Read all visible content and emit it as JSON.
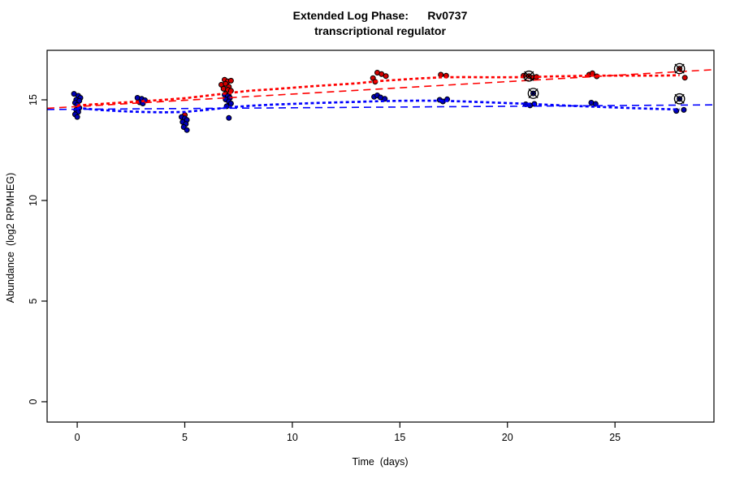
{
  "title": {
    "line1": "Extended Log Phase:      Rv0737",
    "line2": "transcriptional regulator"
  },
  "chart_data": {
    "type": "scatter",
    "title": "Extended Log Phase: Rv0737 — transcriptional regulator",
    "xlabel": "Time  (days)",
    "ylabel": "Abundance  (log2 RPMHEG)",
    "xlim": [
      -1.4,
      29.6
    ],
    "ylim": [
      -1.01,
      17.46
    ],
    "x_ticks": [
      0,
      5,
      10,
      15,
      20,
      25
    ],
    "y_ticks": [
      0,
      5,
      10,
      15
    ],
    "grid": false,
    "legend": "none",
    "colors": {
      "red_points": "#d40000",
      "blue_points": "#0000b8",
      "red_lines": "#ff0000",
      "blue_lines": "#0000ff",
      "marker": "#000000",
      "axis": "#000000"
    },
    "series": [
      {
        "name": "red-points",
        "type": "points",
        "color": "#d40000",
        "points": [
          [
            2.85,
            15.05
          ],
          [
            3.0,
            14.95
          ],
          [
            5.0,
            14.25
          ],
          [
            6.7,
            15.75
          ],
          [
            6.85,
            16.0
          ],
          [
            7.0,
            15.92
          ],
          [
            7.15,
            15.95
          ],
          [
            6.9,
            15.8
          ],
          [
            7.05,
            15.65
          ],
          [
            6.8,
            15.55
          ],
          [
            7.0,
            15.5
          ],
          [
            7.15,
            15.45
          ],
          [
            6.9,
            15.3
          ],
          [
            7.05,
            15.2
          ],
          [
            13.75,
            16.08
          ],
          [
            13.95,
            16.35
          ],
          [
            14.15,
            16.28
          ],
          [
            14.35,
            16.18
          ],
          [
            13.85,
            15.9
          ],
          [
            16.9,
            16.25
          ],
          [
            17.15,
            16.2
          ],
          [
            20.75,
            16.2
          ],
          [
            21.15,
            16.1
          ],
          [
            21.35,
            16.14
          ],
          [
            23.8,
            16.25
          ],
          [
            23.95,
            16.32
          ],
          [
            24.15,
            16.17
          ],
          [
            28.25,
            16.1
          ]
        ]
      },
      {
        "name": "blue-points",
        "type": "points",
        "color": "#0000b8",
        "points": [
          [
            -0.15,
            15.3
          ],
          [
            0.05,
            15.2
          ],
          [
            0.15,
            15.1
          ],
          [
            -0.05,
            15.0
          ],
          [
            0.1,
            14.95
          ],
          [
            -0.1,
            14.85
          ],
          [
            0.0,
            14.75
          ],
          [
            0.1,
            14.6
          ],
          [
            -0.05,
            14.5
          ],
          [
            0.05,
            14.4
          ],
          [
            -0.1,
            14.28
          ],
          [
            0.0,
            14.15
          ],
          [
            2.8,
            15.1
          ],
          [
            3.0,
            15.05
          ],
          [
            3.15,
            14.98
          ],
          [
            2.9,
            14.88
          ],
          [
            3.05,
            14.82
          ],
          [
            4.85,
            14.15
          ],
          [
            5.0,
            14.08
          ],
          [
            5.1,
            14.0
          ],
          [
            4.9,
            13.9
          ],
          [
            5.05,
            13.8
          ],
          [
            4.95,
            13.65
          ],
          [
            5.1,
            13.5
          ],
          [
            6.85,
            15.25
          ],
          [
            7.0,
            15.18
          ],
          [
            7.1,
            15.1
          ],
          [
            6.9,
            15.02
          ],
          [
            7.05,
            14.92
          ],
          [
            7.15,
            14.82
          ],
          [
            6.95,
            14.68
          ],
          [
            7.05,
            14.1
          ],
          [
            13.8,
            15.15
          ],
          [
            13.95,
            15.22
          ],
          [
            14.1,
            15.12
          ],
          [
            14.3,
            15.05
          ],
          [
            16.85,
            15.0
          ],
          [
            17.0,
            14.92
          ],
          [
            17.2,
            15.03
          ],
          [
            20.85,
            14.78
          ],
          [
            21.05,
            14.72
          ],
          [
            21.25,
            14.8
          ],
          [
            23.9,
            14.86
          ],
          [
            24.1,
            14.8
          ],
          [
            27.85,
            14.45
          ],
          [
            28.2,
            14.5
          ]
        ]
      },
      {
        "name": "red-flagged-points",
        "type": "circled-points",
        "color": "#d40000",
        "points": [
          [
            21.0,
            16.18
          ],
          [
            28.0,
            16.55
          ]
        ]
      },
      {
        "name": "blue-flagged-points",
        "type": "circled-points",
        "color": "#0000b8",
        "points": [
          [
            21.2,
            15.32
          ],
          [
            28.0,
            15.05
          ]
        ]
      },
      {
        "name": "red-loess-fit",
        "type": "curve",
        "style": "dotted",
        "color": "#ff0000",
        "points": [
          [
            0,
            14.72
          ],
          [
            2,
            14.86
          ],
          [
            4,
            15.0
          ],
          [
            5,
            15.08
          ],
          [
            6,
            15.2
          ],
          [
            7,
            15.33
          ],
          [
            8,
            15.45
          ],
          [
            9,
            15.52
          ],
          [
            10,
            15.6
          ],
          [
            11,
            15.68
          ],
          [
            12,
            15.75
          ],
          [
            13,
            15.82
          ],
          [
            14,
            15.93
          ],
          [
            15,
            16.0
          ],
          [
            16,
            16.07
          ],
          [
            17,
            16.12
          ],
          [
            18,
            16.13
          ],
          [
            19,
            16.12
          ],
          [
            20,
            16.12
          ],
          [
            21,
            16.13
          ],
          [
            22,
            16.16
          ],
          [
            23,
            16.18
          ],
          [
            24,
            16.2
          ],
          [
            25,
            16.2
          ],
          [
            26,
            16.2
          ],
          [
            27,
            16.2
          ],
          [
            28,
            16.22
          ]
        ]
      },
      {
        "name": "blue-loess-fit",
        "type": "curve",
        "style": "dotted",
        "color": "#0000ff",
        "points": [
          [
            0,
            14.6
          ],
          [
            1,
            14.5
          ],
          [
            2,
            14.44
          ],
          [
            3,
            14.4
          ],
          [
            4,
            14.38
          ],
          [
            5,
            14.4
          ],
          [
            6,
            14.5
          ],
          [
            7,
            14.62
          ],
          [
            8,
            14.7
          ],
          [
            9,
            14.76
          ],
          [
            10,
            14.8
          ],
          [
            11,
            14.84
          ],
          [
            12,
            14.87
          ],
          [
            13,
            14.9
          ],
          [
            14,
            14.93
          ],
          [
            15,
            14.95
          ],
          [
            16,
            14.96
          ],
          [
            17,
            14.95
          ],
          [
            18,
            14.92
          ],
          [
            19,
            14.88
          ],
          [
            20,
            14.84
          ],
          [
            21,
            14.8
          ],
          [
            22,
            14.75
          ],
          [
            23,
            14.7
          ],
          [
            24,
            14.66
          ],
          [
            25,
            14.62
          ],
          [
            26,
            14.58
          ],
          [
            27,
            14.55
          ],
          [
            28,
            14.52
          ]
        ]
      },
      {
        "name": "red-linear-fit",
        "type": "curve",
        "style": "dashed",
        "color": "#ff0000",
        "points": [
          [
            -1.4,
            14.58
          ],
          [
            29.6,
            16.5
          ]
        ]
      },
      {
        "name": "blue-linear-fit",
        "type": "curve",
        "style": "dashed",
        "color": "#0000ff",
        "points": [
          [
            -1.4,
            14.52
          ],
          [
            29.6,
            14.75
          ]
        ]
      }
    ]
  }
}
